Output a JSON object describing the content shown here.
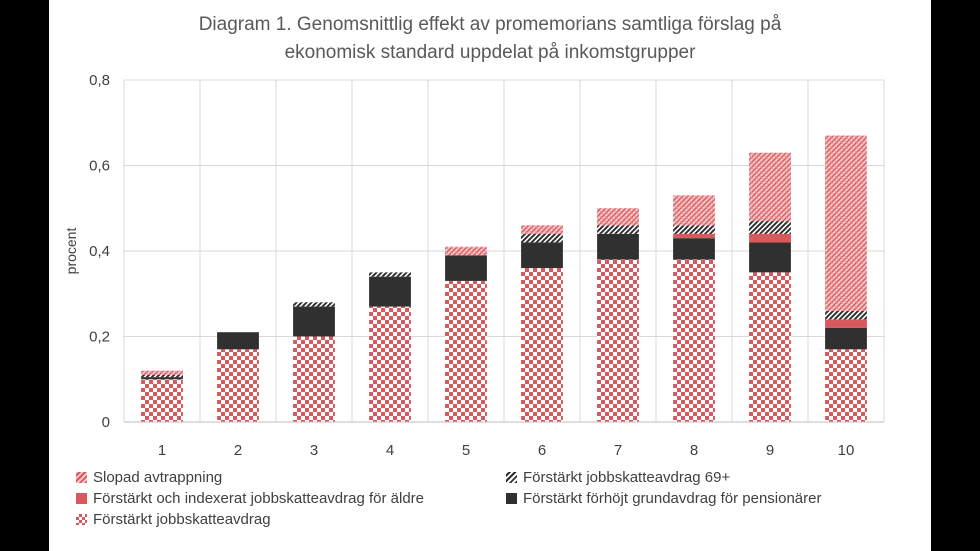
{
  "chart_data": {
    "type": "bar",
    "stacked": true,
    "title_line1": "Diagram 1. Genomsnittlig effekt av promemorians samtliga förslag på",
    "title_line2": "ekonomisk standard uppdelat på inkomstgrupper",
    "ylabel": "procent",
    "ylim": [
      0,
      0.8
    ],
    "yticks": [
      0,
      0.2,
      0.4,
      0.6,
      0.8
    ],
    "ytick_labels": [
      "0",
      "0,2",
      "0,4",
      "0,6",
      "0,8"
    ],
    "categories": [
      "1",
      "2",
      "3",
      "4",
      "5",
      "6",
      "7",
      "8",
      "9",
      "10"
    ],
    "series": [
      {
        "name": "Förstärkt jobbskatteavdrag",
        "color": "#d9585d",
        "pattern": "checker",
        "values": [
          0.1,
          0.17,
          0.2,
          0.27,
          0.33,
          0.36,
          0.38,
          0.38,
          0.35,
          0.17
        ]
      },
      {
        "name": "Förstärkt förhöjt grundavdrag för pensionärer",
        "color": "#303030",
        "pattern": "solid",
        "values": [
          0.005,
          0.04,
          0.07,
          0.07,
          0.06,
          0.06,
          0.06,
          0.05,
          0.07,
          0.05
        ]
      },
      {
        "name": "Förstärkt och indexerat jobbskatteavdrag för äldre",
        "color": "#d9585d",
        "pattern": "solid",
        "values": [
          0.0,
          0.0,
          0.0,
          0.0,
          0.0,
          0.0,
          0.0,
          0.01,
          0.02,
          0.02
        ]
      },
      {
        "name": "Förstärkt jobbskatteavdrag 69+",
        "color": "#303030",
        "pattern": "diagonal",
        "values": [
          0.005,
          0.0,
          0.01,
          0.01,
          0.0,
          0.02,
          0.02,
          0.02,
          0.03,
          0.02
        ]
      },
      {
        "name": "Slopad avtrappning",
        "color": "#d9585d",
        "pattern": "hatch",
        "values": [
          0.01,
          0.0,
          0.0,
          0.0,
          0.02,
          0.02,
          0.04,
          0.07,
          0.16,
          0.41
        ]
      }
    ],
    "legend": [
      "Slopad avtrappning",
      "Förstärkt jobbskatteavdrag 69+",
      "Förstärkt och indexerat jobbskatteavdrag för äldre",
      "Förstärkt förhöjt grundavdrag för pensionärer",
      "Förstärkt jobbskatteavdrag"
    ],
    "legend_position": "bottom",
    "grid": true
  }
}
